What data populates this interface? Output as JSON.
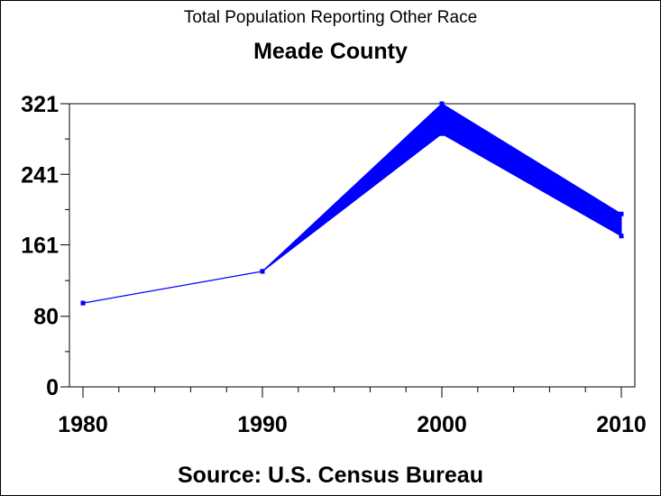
{
  "chart_data": {
    "type": "line",
    "title": "Total Population Reporting Other Race",
    "subtitle": "Meade County",
    "footnote": "Source: U.S. Census Bureau",
    "xlabel": "",
    "ylabel": "",
    "x": [
      1980,
      1990,
      2000,
      2010
    ],
    "x_tick_labels": [
      "1980",
      "1990",
      "2000",
      "2010"
    ],
    "xlim": [
      1980,
      2010
    ],
    "ylim": [
      0,
      321
    ],
    "y_ticks": [
      0,
      80,
      161,
      241,
      321
    ],
    "y_tick_labels": [
      "0",
      "80",
      "161",
      "241",
      "321"
    ],
    "series": [
      {
        "name": "upper",
        "values": [
          95,
          131,
          321,
          196
        ]
      },
      {
        "name": "lower",
        "values": [
          95,
          131,
          287,
          171
        ]
      }
    ],
    "color": "#0000ff",
    "grid": false
  }
}
